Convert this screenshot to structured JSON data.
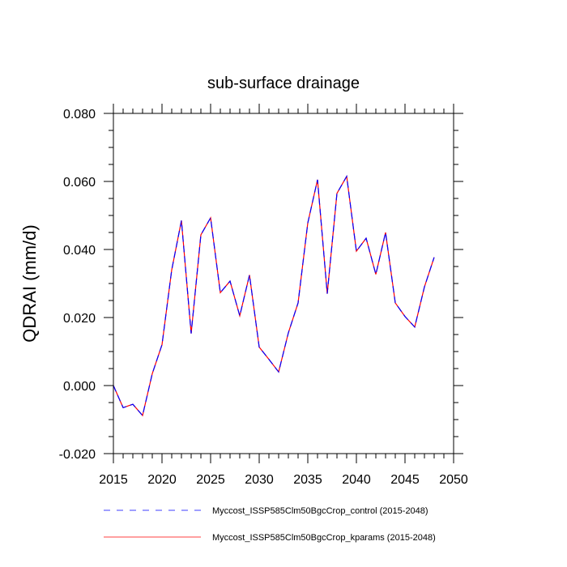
{
  "chart_data": {
    "type": "line",
    "title": "sub-surface drainage",
    "xlabel": "",
    "ylabel": "QDRAI  (mm/d)",
    "xlim": [
      2015,
      2050
    ],
    "ylim": [
      -0.02,
      0.08
    ],
    "x_ticks": [
      2015,
      2020,
      2025,
      2030,
      2035,
      2040,
      2045,
      2050
    ],
    "x_tick_labels": [
      "2015",
      "2020",
      "2025",
      "2030",
      "2035",
      "2040",
      "2045",
      "2050"
    ],
    "y_ticks": [
      -0.02,
      0.0,
      0.02,
      0.04,
      0.06,
      0.08
    ],
    "y_tick_labels": [
      "-0.020",
      "0.000",
      "0.020",
      "0.040",
      "0.060",
      "0.080"
    ],
    "grid": false,
    "legend_position": "bottom",
    "x": [
      2015,
      2016,
      2017,
      2018,
      2019,
      2020,
      2021,
      2022,
      2023,
      2024,
      2025,
      2026,
      2027,
      2028,
      2029,
      2030,
      2031,
      2032,
      2033,
      2034,
      2035,
      2036,
      2037,
      2038,
      2039,
      2040,
      2041,
      2042,
      2043,
      2044,
      2045,
      2046,
      2047,
      2048
    ],
    "series": [
      {
        "name": "Myccost_ISSP585Clm50BgcCrop_control (2015-2048)",
        "color": "#0000ff",
        "dash": "dashed",
        "values": [
          0.0,
          -0.0065,
          -0.0055,
          -0.0088,
          0.0035,
          0.012,
          0.034,
          0.0485,
          0.0153,
          0.0443,
          0.0493,
          0.0273,
          0.0307,
          0.0205,
          0.0325,
          0.0113,
          0.0077,
          0.004,
          0.0155,
          0.0243,
          0.0478,
          0.0605,
          0.027,
          0.0565,
          0.0615,
          0.0395,
          0.0433,
          0.0327,
          0.045,
          0.0243,
          0.0203,
          0.0172,
          0.029,
          0.0377
        ]
      },
      {
        "name": "Myccost_ISSP585Clm50BgcCrop_kparams (2015-2048)",
        "color": "#ff0000",
        "dash": "solid",
        "values": [
          0.0,
          -0.0065,
          -0.0055,
          -0.0088,
          0.0035,
          0.012,
          0.034,
          0.0485,
          0.0153,
          0.0443,
          0.0493,
          0.0273,
          0.0307,
          0.0205,
          0.0325,
          0.0113,
          0.0077,
          0.004,
          0.0155,
          0.0243,
          0.0478,
          0.0605,
          0.027,
          0.0565,
          0.0615,
          0.0395,
          0.0433,
          0.0327,
          0.045,
          0.0243,
          0.0203,
          0.0172,
          0.029,
          0.0377
        ]
      }
    ]
  }
}
